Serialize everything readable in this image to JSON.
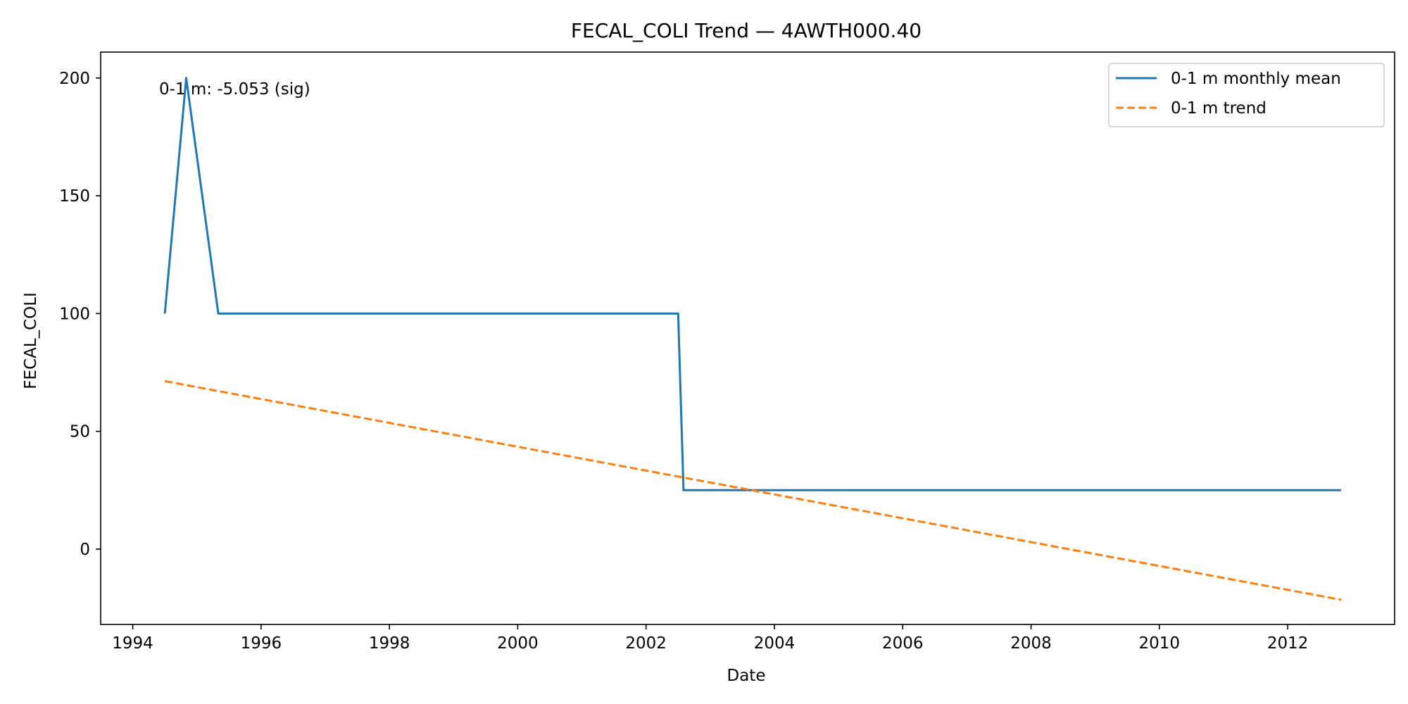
{
  "chart_data": {
    "type": "line",
    "title": "FECAL_COLI Trend — 4AWTH000.40",
    "xlabel": "Date",
    "ylabel": "FECAL_COLI",
    "xlim": [
      "1993-07",
      "2013-09"
    ],
    "ylim": [
      -32,
      211
    ],
    "x_ticks": [
      1994,
      1996,
      1998,
      2000,
      2002,
      2004,
      2006,
      2008,
      2010,
      2012
    ],
    "y_ticks": [
      0,
      50,
      100,
      150,
      200
    ],
    "grid": false,
    "legend_position": "top-right",
    "annotation": "0-1 m: -5.053 (sig)",
    "series": [
      {
        "name": "0-1 m monthly mean",
        "style": "solid",
        "color": "#1f77b4",
        "points": [
          {
            "x": "1994-07",
            "y": 100
          },
          {
            "x": "1994-11",
            "y": 200
          },
          {
            "x": "1995-05",
            "y": 100
          },
          {
            "x": "2002-07",
            "y": 100
          },
          {
            "x": "2002-08",
            "y": 25
          },
          {
            "x": "2012-11",
            "y": 25
          }
        ]
      },
      {
        "name": "0-1 m trend",
        "style": "dashed",
        "color": "#ff7f0e",
        "points": [
          {
            "x": "1994-07",
            "y": 71.3
          },
          {
            "x": "2012-11",
            "y": -21.5
          }
        ]
      }
    ]
  }
}
